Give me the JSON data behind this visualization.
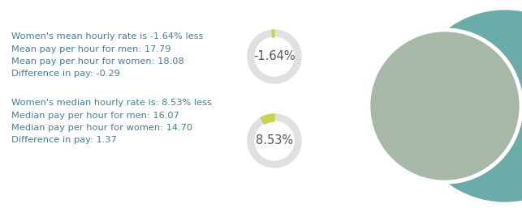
{
  "bg_color": "#ffffff",
  "text_color": "#4a7c8e",
  "text_lines_top": [
    "Women's mean hourly rate is -1.64% less",
    "Mean pay per hour for men: 17.79",
    "Mean pay per hour for women: 18.08",
    "Difference in pay: -0.29"
  ],
  "text_lines_bottom": [
    "Women's median hourly rate is: 8.53% less",
    "Median pay per hour for men: 16.07",
    "Median pay per hour for women: 14.70",
    "Difference in pay: 1.37"
  ],
  "donut1_label": "-1.64%",
  "donut2_label": "8.53%",
  "donut_bg_color": "#e0e0e0",
  "donut_highlight_color": "#c8d44e",
  "donut1_pct": 1.64,
  "donut2_pct": 8.53,
  "teal_bg_color": "#6aacaa",
  "photo_border_color": "#ffffff",
  "font_size": 8.2,
  "label_font_size": 10.5
}
